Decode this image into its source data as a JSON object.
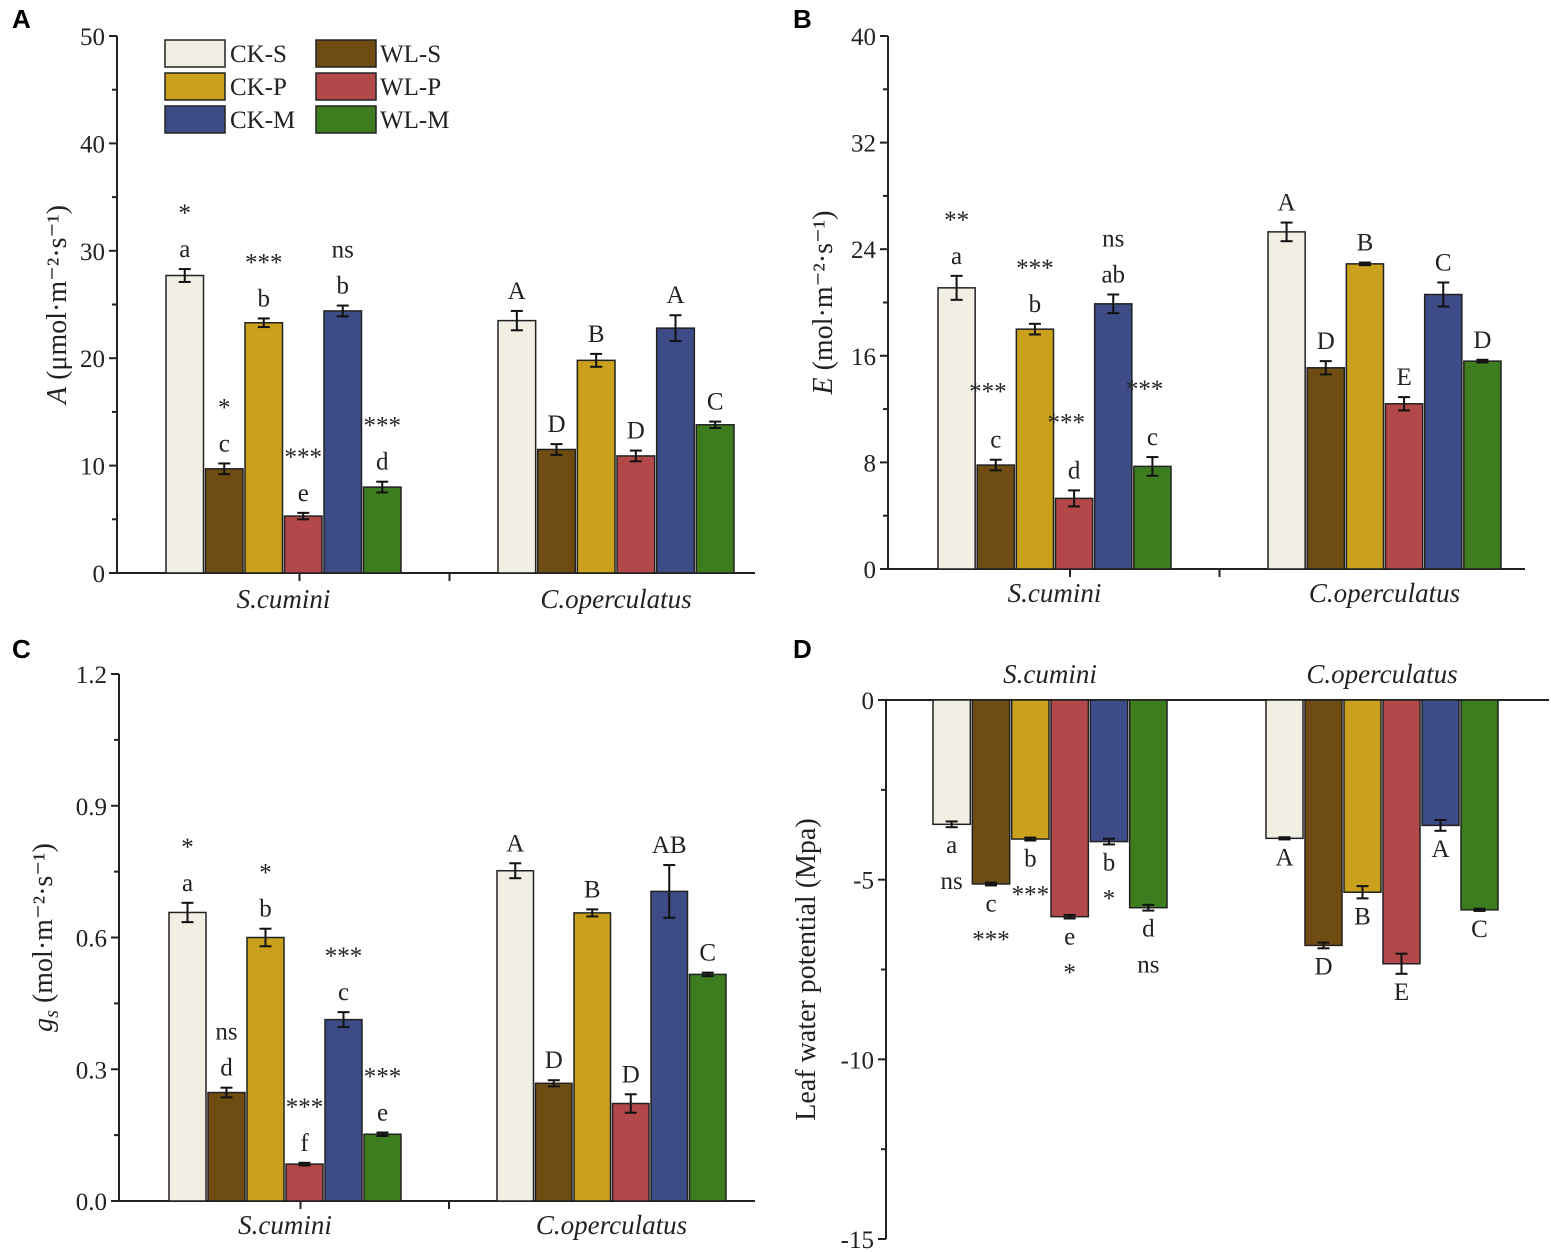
{
  "colors": {
    "CK-S": "#f1eee4",
    "WL-S": "#6f4d12",
    "CK-P": "#c9a11c",
    "WL-P": "#b2484a",
    "CK-M": "#3d4b86",
    "WL-M": "#3e7d1f"
  },
  "chart_data": [
    {
      "panel": "A",
      "type": "bar",
      "ylabel_var": "A",
      "ylabel_unit": "(μmol·m⁻²·s⁻¹)",
      "ylabel_text": "A (μmol·m⁻²·s⁻¹)",
      "ylim": [
        0,
        50
      ],
      "yticks": [
        0,
        10,
        20,
        30,
        40,
        50
      ],
      "categories": [
        "S.cumini",
        "C.operculatus"
      ],
      "series": [
        {
          "name": "CK-S",
          "values": [
            27.7,
            23.5
          ],
          "errors": [
            0.6,
            0.9
          ],
          "letters": [
            "a",
            "A"
          ],
          "sig": [
            "*",
            ""
          ]
        },
        {
          "name": "WL-S",
          "values": [
            9.7,
            11.5
          ],
          "errors": [
            0.5,
            0.5
          ],
          "letters": [
            "c",
            "D"
          ],
          "sig": [
            "*",
            ""
          ]
        },
        {
          "name": "CK-P",
          "values": [
            23.3,
            19.8
          ],
          "errors": [
            0.4,
            0.6
          ],
          "letters": [
            "b",
            "B"
          ],
          "sig": [
            "***",
            ""
          ]
        },
        {
          "name": "WL-P",
          "values": [
            5.3,
            10.9
          ],
          "errors": [
            0.3,
            0.5
          ],
          "letters": [
            "e",
            "D"
          ],
          "sig": [
            "***",
            ""
          ]
        },
        {
          "name": "CK-M",
          "values": [
            24.4,
            22.8
          ],
          "errors": [
            0.5,
            1.2
          ],
          "letters": [
            "b",
            "A"
          ],
          "sig": [
            "ns",
            ""
          ]
        },
        {
          "name": "WL-M",
          "values": [
            8.0,
            13.8
          ],
          "errors": [
            0.5,
            0.3
          ],
          "letters": [
            "d",
            "C"
          ],
          "sig": [
            "***",
            ""
          ]
        }
      ],
      "legend": [
        "CK-S",
        "WL-S",
        "CK-P",
        "WL-P",
        "CK-M",
        "WL-M"
      ],
      "legend_position": "top-left"
    },
    {
      "panel": "B",
      "type": "bar",
      "ylabel_var": "E",
      "ylabel_unit": "(mol·m⁻²·s⁻¹)",
      "ylabel_text": "E (mol·m⁻²·s⁻¹)",
      "ylim": [
        0,
        40
      ],
      "yticks": [
        0,
        8,
        16,
        24,
        32,
        40
      ],
      "categories": [
        "S.cumini",
        "C.operculatus"
      ],
      "series": [
        {
          "name": "CK-S",
          "values": [
            21.1,
            25.3
          ],
          "errors": [
            0.9,
            0.7
          ],
          "letters": [
            "a",
            "A"
          ],
          "sig": [
            "**",
            ""
          ]
        },
        {
          "name": "WL-S",
          "values": [
            7.8,
            15.1
          ],
          "errors": [
            0.4,
            0.5
          ],
          "letters": [
            "c",
            "D"
          ],
          "sig": [
            "***",
            ""
          ]
        },
        {
          "name": "CK-P",
          "values": [
            18.0,
            22.9
          ],
          "errors": [
            0.4,
            0.1
          ],
          "letters": [
            "b",
            "B"
          ],
          "sig": [
            "***",
            ""
          ]
        },
        {
          "name": "WL-P",
          "values": [
            5.3,
            12.4
          ],
          "errors": [
            0.6,
            0.5
          ],
          "letters": [
            "d",
            "E"
          ],
          "sig": [
            "***",
            ""
          ]
        },
        {
          "name": "CK-M",
          "values": [
            19.9,
            20.6
          ],
          "errors": [
            0.7,
            0.9
          ],
          "letters": [
            "ab",
            "C"
          ],
          "sig": [
            "ns",
            ""
          ]
        },
        {
          "name": "WL-M",
          "values": [
            7.7,
            15.6
          ],
          "errors": [
            0.7,
            0.1
          ],
          "letters": [
            "c",
            "D"
          ],
          "sig": [
            "***",
            ""
          ]
        }
      ]
    },
    {
      "panel": "C",
      "type": "bar",
      "ylabel_var": "g",
      "ylabel_sub": "s",
      "ylabel_unit": "(mol·m⁻²·s⁻¹)",
      "ylabel_text": "gs (mol·m⁻²·s⁻¹)",
      "ylim": [
        0,
        1.2
      ],
      "yticks": [
        "0.0",
        "0.3",
        "0.6",
        "0.9",
        "1.2"
      ],
      "categories": [
        "S.cumini",
        "C.operculatus"
      ],
      "series": [
        {
          "name": "CK-S",
          "values": [
            0.657,
            0.752
          ],
          "errors": [
            0.022,
            0.017
          ],
          "letters": [
            "a",
            "A"
          ],
          "sig": [
            "*",
            ""
          ]
        },
        {
          "name": "WL-S",
          "values": [
            0.247,
            0.268
          ],
          "errors": [
            0.011,
            0.007
          ],
          "letters": [
            "d",
            "D"
          ],
          "sig": [
            "ns",
            ""
          ]
        },
        {
          "name": "CK-P",
          "values": [
            0.6,
            0.656
          ],
          "errors": [
            0.02,
            0.008
          ],
          "letters": [
            "b",
            "B"
          ],
          "sig": [
            "*",
            ""
          ]
        },
        {
          "name": "WL-P",
          "values": [
            0.084,
            0.222
          ],
          "errors": [
            0.003,
            0.021
          ],
          "letters": [
            "f",
            "D"
          ],
          "sig": [
            "***",
            ""
          ]
        },
        {
          "name": "CK-M",
          "values": [
            0.413,
            0.705
          ],
          "errors": [
            0.017,
            0.06
          ],
          "letters": [
            "c",
            "AB"
          ],
          "sig": [
            "***",
            ""
          ]
        },
        {
          "name": "WL-M",
          "values": [
            0.152,
            0.516
          ],
          "errors": [
            0.004,
            0.004
          ],
          "letters": [
            "e",
            "C"
          ],
          "sig": [
            "***",
            ""
          ]
        }
      ]
    },
    {
      "panel": "D",
      "type": "bar",
      "ylabel_text": "Leaf water potential (Mpa)",
      "ylim": [
        -15,
        0
      ],
      "yticks": [
        0,
        -5,
        -10,
        -15
      ],
      "categories": [
        "S.cumini",
        "C.operculatus"
      ],
      "series": [
        {
          "name": "CK-S",
          "values": [
            -3.46,
            -3.85
          ],
          "errors": [
            0.08,
            0.03
          ],
          "letters": [
            "a",
            "A"
          ],
          "sig": [
            "ns",
            ""
          ]
        },
        {
          "name": "WL-S",
          "values": [
            -5.12,
            -6.83
          ],
          "errors": [
            0.04,
            0.08
          ],
          "letters": [
            "c",
            "D"
          ],
          "sig": [
            "***",
            ""
          ]
        },
        {
          "name": "CK-P",
          "values": [
            -3.87,
            -5.35
          ],
          "errors": [
            0.04,
            0.17
          ],
          "letters": [
            "b",
            "B"
          ],
          "sig": [
            "***",
            ""
          ]
        },
        {
          "name": "WL-P",
          "values": [
            -6.03,
            -7.34
          ],
          "errors": [
            0.05,
            0.28
          ],
          "letters": [
            "e",
            "E"
          ],
          "sig": [
            "*",
            ""
          ]
        },
        {
          "name": "CK-M",
          "values": [
            -3.94,
            -3.49
          ],
          "errors": [
            0.08,
            0.15
          ],
          "letters": [
            "b",
            "A"
          ],
          "sig": [
            "*",
            ""
          ]
        },
        {
          "name": "WL-M",
          "values": [
            -5.78,
            -5.84
          ],
          "errors": [
            0.08,
            0.03
          ],
          "letters": [
            "d",
            "C"
          ],
          "sig": [
            "ns",
            ""
          ]
        }
      ]
    }
  ]
}
